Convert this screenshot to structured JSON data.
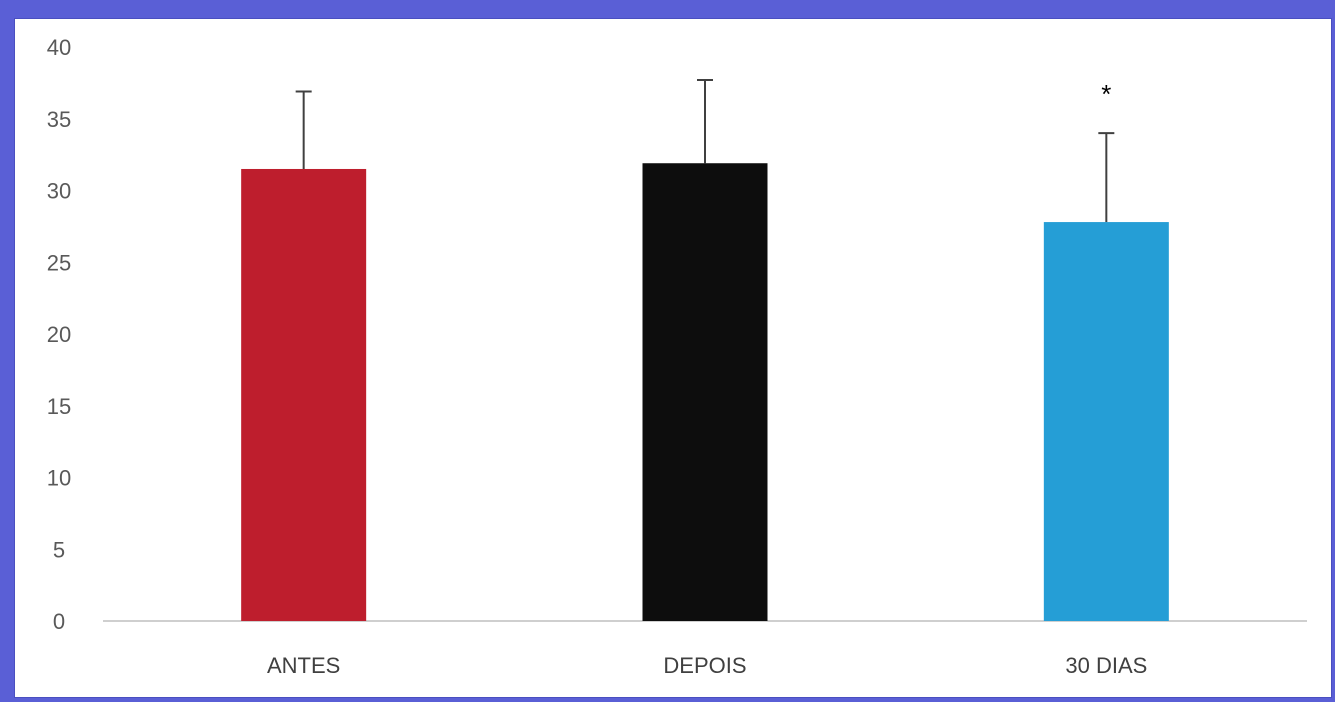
{
  "chart_data": {
    "type": "bar",
    "title": "",
    "xlabel": "",
    "ylabel": "",
    "categories": [
      "ANTES",
      "DEPOIS",
      "30 DIAS"
    ],
    "values": [
      31.5,
      31.9,
      27.8
    ],
    "error_upper": [
      36.9,
      37.7,
      34.0
    ],
    "colors": [
      "#be1e2d",
      "#0d0d0d",
      "#259ed6"
    ],
    "annotations": [
      "",
      "",
      "*"
    ],
    "ylim": [
      0,
      40
    ],
    "yticks": [
      0,
      5,
      10,
      15,
      20,
      25,
      30,
      35,
      40
    ],
    "grid": false,
    "legend": "none"
  },
  "theme": {
    "background": "#5a5fd6",
    "panel": "#ffffff",
    "axis_color": "#bfbfbf",
    "error_bar_color": "#404040"
  }
}
